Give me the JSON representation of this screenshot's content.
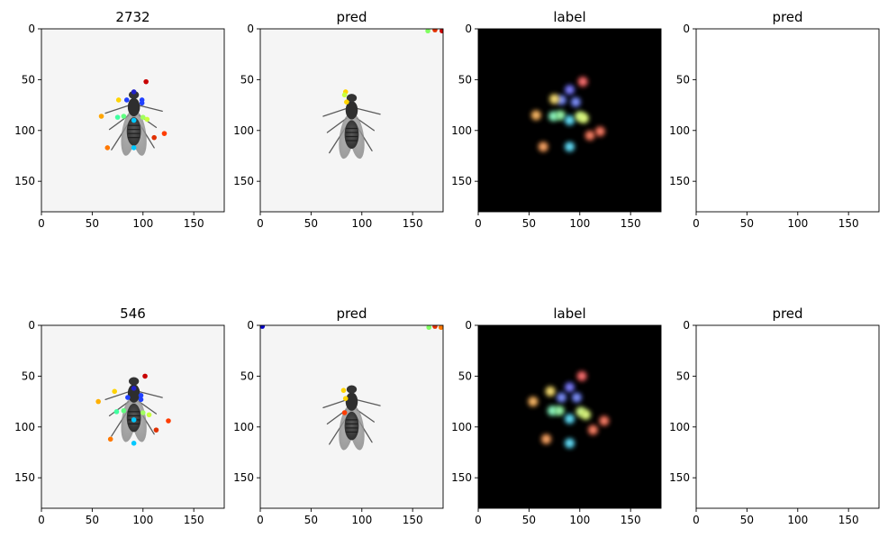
{
  "chart_data": [
    {
      "type": "image",
      "title": "2732",
      "background": "fly",
      "xlim": [
        0,
        180
      ],
      "ylim": [
        180,
        0
      ],
      "xticks": [
        0,
        50,
        100,
        150
      ],
      "yticks": [
        0,
        50,
        100,
        150
      ],
      "fly": {
        "cx": 91,
        "cy": 97
      },
      "points": [
        {
          "x": 103,
          "y": 52,
          "color": "#c80000"
        },
        {
          "x": 91,
          "y": 62,
          "color": "#2020c8"
        },
        {
          "x": 84,
          "y": 70,
          "color": "#2040ff"
        },
        {
          "x": 99,
          "y": 70,
          "color": "#2040ff"
        },
        {
          "x": 99,
          "y": 73,
          "color": "#2040ff"
        },
        {
          "x": 76,
          "y": 70,
          "color": "#ffd400"
        },
        {
          "x": 59,
          "y": 86,
          "color": "#ffa500"
        },
        {
          "x": 75,
          "y": 87,
          "color": "#40ffa0"
        },
        {
          "x": 81,
          "y": 86,
          "color": "#60ff80"
        },
        {
          "x": 91,
          "y": 90,
          "color": "#00c8ff"
        },
        {
          "x": 100,
          "y": 87,
          "color": "#a0ff60"
        },
        {
          "x": 104,
          "y": 89,
          "color": "#c8ff40"
        },
        {
          "x": 121,
          "y": 103,
          "color": "#ff3c00"
        },
        {
          "x": 111,
          "y": 107,
          "color": "#e03000"
        },
        {
          "x": 65,
          "y": 117,
          "color": "#ff7800"
        },
        {
          "x": 91,
          "y": 117,
          "color": "#00c8ff"
        }
      ]
    },
    {
      "type": "image",
      "title": "pred",
      "background": "fly",
      "xlim": [
        0,
        180
      ],
      "ylim": [
        180,
        0
      ],
      "xticks": [
        0,
        50,
        100,
        150
      ],
      "yticks": [
        0,
        50,
        100,
        150
      ],
      "fly": {
        "cx": 90,
        "cy": 100
      },
      "points": [
        {
          "x": 84,
          "y": 62,
          "color": "#ffd400"
        },
        {
          "x": 83,
          "y": 65,
          "color": "#c8ff40"
        },
        {
          "x": 85,
          "y": 72,
          "color": "#ffd400"
        },
        {
          "x": 165,
          "y": 2,
          "color": "#80ff60"
        },
        {
          "x": 172,
          "y": 1,
          "color": "#e03000"
        },
        {
          "x": 179,
          "y": 2,
          "color": "#c80000"
        }
      ]
    },
    {
      "type": "heatmap",
      "title": "label",
      "background": "black",
      "xlim": [
        0,
        180
      ],
      "ylim": [
        180,
        0
      ],
      "xticks": [
        0,
        50,
        100,
        150
      ],
      "yticks": [
        0,
        50,
        100,
        150
      ],
      "points": [
        {
          "x": 103,
          "y": 52,
          "color": "#ff5a5a"
        },
        {
          "x": 90,
          "y": 60,
          "color": "#6a6aff"
        },
        {
          "x": 82,
          "y": 70,
          "color": "#6a80ff"
        },
        {
          "x": 96,
          "y": 72,
          "color": "#6a80ff"
        },
        {
          "x": 75,
          "y": 69,
          "color": "#ffe060"
        },
        {
          "x": 57,
          "y": 85,
          "color": "#ffb050"
        },
        {
          "x": 74,
          "y": 86,
          "color": "#80ffc0"
        },
        {
          "x": 81,
          "y": 85,
          "color": "#90ffa0"
        },
        {
          "x": 90,
          "y": 90,
          "color": "#50e0ff"
        },
        {
          "x": 100,
          "y": 86,
          "color": "#d0ff80"
        },
        {
          "x": 104,
          "y": 88,
          "color": "#e0ff70"
        },
        {
          "x": 120,
          "y": 101,
          "color": "#ff6a50"
        },
        {
          "x": 110,
          "y": 105,
          "color": "#ff7050"
        },
        {
          "x": 64,
          "y": 116,
          "color": "#ff9a50"
        },
        {
          "x": 90,
          "y": 116,
          "color": "#50e0ff"
        }
      ]
    },
    {
      "type": "image",
      "title": "pred",
      "background": "white",
      "xlim": [
        0,
        180
      ],
      "ylim": [
        180,
        0
      ],
      "xticks": [
        0,
        50,
        100,
        150
      ],
      "yticks": [
        0,
        50,
        100,
        150
      ],
      "points": []
    },
    {
      "type": "image",
      "title": "546",
      "background": "fly",
      "xlim": [
        0,
        180
      ],
      "ylim": [
        180,
        0
      ],
      "xticks": [
        0,
        50,
        100,
        150
      ],
      "yticks": [
        0,
        50,
        100,
        150
      ],
      "fly": {
        "cx": 91,
        "cy": 87
      },
      "points": [
        {
          "x": 102,
          "y": 50,
          "color": "#c80000"
        },
        {
          "x": 91,
          "y": 62,
          "color": "#2020c8"
        },
        {
          "x": 85,
          "y": 71,
          "color": "#2040ff"
        },
        {
          "x": 98,
          "y": 69,
          "color": "#2040ff"
        },
        {
          "x": 98,
          "y": 73,
          "color": "#2040ff"
        },
        {
          "x": 72,
          "y": 65,
          "color": "#ffd400"
        },
        {
          "x": 56,
          "y": 75,
          "color": "#ffb000"
        },
        {
          "x": 74,
          "y": 85,
          "color": "#40ffa0"
        },
        {
          "x": 81,
          "y": 84,
          "color": "#60ff80"
        },
        {
          "x": 91,
          "y": 93,
          "color": "#00c8ff"
        },
        {
          "x": 100,
          "y": 86,
          "color": "#a0ff60"
        },
        {
          "x": 106,
          "y": 88,
          "color": "#c8ff40"
        },
        {
          "x": 125,
          "y": 94,
          "color": "#ff3c00"
        },
        {
          "x": 113,
          "y": 103,
          "color": "#e03000"
        },
        {
          "x": 68,
          "y": 112,
          "color": "#ff7800"
        },
        {
          "x": 91,
          "y": 116,
          "color": "#00c8ff"
        }
      ]
    },
    {
      "type": "image",
      "title": "pred",
      "background": "fly",
      "xlim": [
        0,
        180
      ],
      "ylim": [
        180,
        0
      ],
      "xticks": [
        0,
        50,
        100,
        150
      ],
      "yticks": [
        0,
        50,
        100,
        150
      ],
      "fly": {
        "cx": 90,
        "cy": 95
      },
      "points": [
        {
          "x": 82,
          "y": 64,
          "color": "#ffd400"
        },
        {
          "x": 84,
          "y": 72,
          "color": "#ffd400"
        },
        {
          "x": 83,
          "y": 86,
          "color": "#ff3c00"
        },
        {
          "x": 2,
          "y": 1,
          "color": "#0000c8"
        },
        {
          "x": 166,
          "y": 2,
          "color": "#80ff60"
        },
        {
          "x": 172,
          "y": 1,
          "color": "#e03000"
        },
        {
          "x": 178,
          "y": 2,
          "color": "#ff7800"
        }
      ]
    },
    {
      "type": "heatmap",
      "title": "label",
      "background": "black",
      "xlim": [
        0,
        180
      ],
      "ylim": [
        180,
        0
      ],
      "xticks": [
        0,
        50,
        100,
        150
      ],
      "yticks": [
        0,
        50,
        100,
        150
      ],
      "points": [
        {
          "x": 102,
          "y": 50,
          "color": "#ff5a5a"
        },
        {
          "x": 90,
          "y": 61,
          "color": "#6a6aff"
        },
        {
          "x": 82,
          "y": 71,
          "color": "#6a80ff"
        },
        {
          "x": 97,
          "y": 71,
          "color": "#6a80ff"
        },
        {
          "x": 71,
          "y": 65,
          "color": "#ffe060"
        },
        {
          "x": 54,
          "y": 75,
          "color": "#ffb050"
        },
        {
          "x": 73,
          "y": 84,
          "color": "#80ffc0"
        },
        {
          "x": 80,
          "y": 84,
          "color": "#90ffa0"
        },
        {
          "x": 90,
          "y": 92,
          "color": "#50e0ff"
        },
        {
          "x": 101,
          "y": 85,
          "color": "#d0ff80"
        },
        {
          "x": 106,
          "y": 88,
          "color": "#e0ff70"
        },
        {
          "x": 124,
          "y": 94,
          "color": "#ff6a50"
        },
        {
          "x": 113,
          "y": 103,
          "color": "#ff7050"
        },
        {
          "x": 67,
          "y": 112,
          "color": "#ff9a50"
        },
        {
          "x": 90,
          "y": 116,
          "color": "#50e0ff"
        }
      ]
    },
    {
      "type": "image",
      "title": "pred",
      "background": "white",
      "xlim": [
        0,
        180
      ],
      "ylim": [
        180,
        0
      ],
      "xticks": [
        0,
        50,
        100,
        150
      ],
      "yticks": [
        0,
        50,
        100,
        150
      ],
      "points": []
    }
  ]
}
